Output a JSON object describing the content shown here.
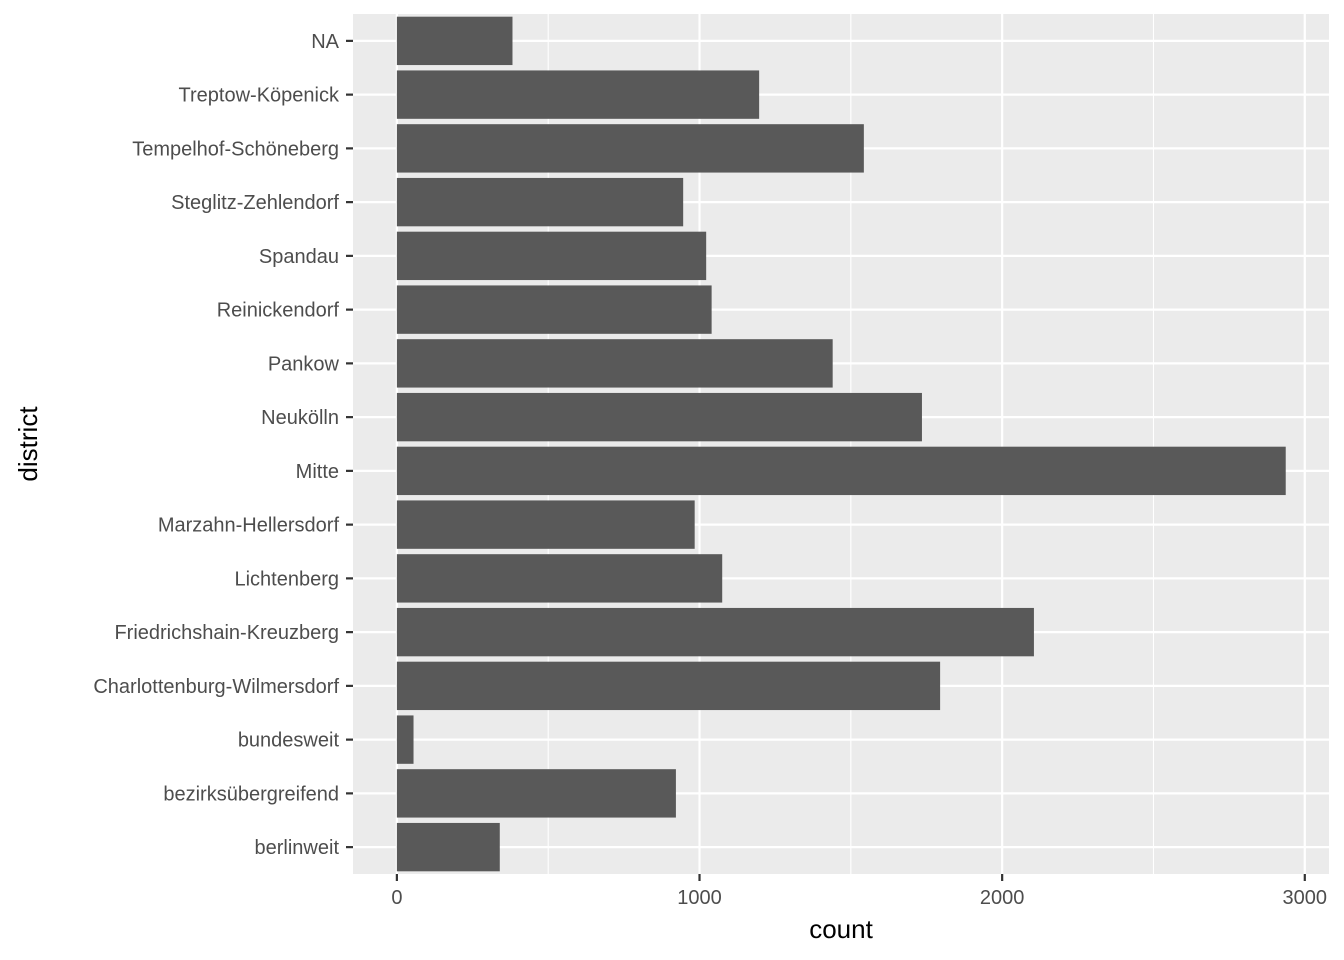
{
  "chart_data": {
    "type": "bar",
    "orientation": "horizontal",
    "title": "",
    "xlabel": "count",
    "ylabel": "district",
    "xlim": [
      -145,
      3080
    ],
    "xticks": [
      0,
      1000,
      2000,
      3000
    ],
    "xticks_minor": [
      500,
      1500,
      2500
    ],
    "grid": true,
    "colors": {
      "panel": "#ebebeb",
      "grid": "#ffffff",
      "bar": "#595959",
      "tick_text": "#4d4d4d",
      "tick_mark": "#333333",
      "title_text": "#000000"
    },
    "categories": [
      "NA",
      "Treptow-Köpenick",
      "Tempelhof-Schöneberg",
      "Steglitz-Zehlendorf",
      "Spandau",
      "Reinickendorf",
      "Pankow",
      "Neukölln",
      "Mitte",
      "Marzahn-Hellersdorf",
      "Lichtenberg",
      "Friedrichshain-Kreuzberg",
      "Charlottenburg-Wilmersdorf",
      "bundesweit",
      "bezirksübergreifend",
      "berlinweit"
    ],
    "values": [
      382,
      1197,
      1543,
      946,
      1022,
      1040,
      1440,
      1735,
      2937,
      984,
      1075,
      2105,
      1795,
      55,
      922,
      340
    ]
  }
}
